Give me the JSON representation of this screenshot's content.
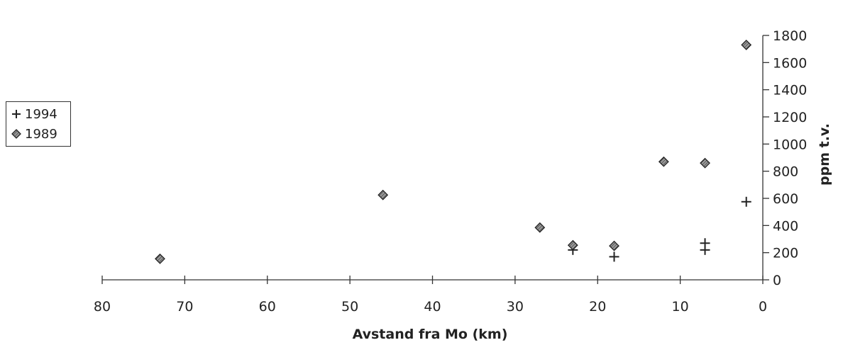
{
  "chart_data": {
    "type": "scatter",
    "xlabel": "Avstand fra Mo (km)",
    "ylabel": "ppm t.v.",
    "xlim": [
      80,
      0
    ],
    "ylim": [
      0,
      1800
    ],
    "x_reversed": true,
    "x_ticks": [
      80,
      70,
      60,
      50,
      40,
      30,
      20,
      10,
      0
    ],
    "y_ticks": [
      0,
      200,
      400,
      600,
      800,
      1000,
      1200,
      1400,
      1600,
      1800
    ],
    "y_axis_side": "right",
    "grid": false,
    "legend_position": "left",
    "series": [
      {
        "name": "1994",
        "marker": "plus",
        "color": "#222222",
        "points": [
          [
            23,
            220
          ],
          [
            18,
            170
          ],
          [
            7,
            220
          ],
          [
            7,
            270
          ],
          [
            2,
            575
          ]
        ]
      },
      {
        "name": "1989",
        "marker": "diamond",
        "color": "#555555",
        "points": [
          [
            73,
            155
          ],
          [
            46,
            625
          ],
          [
            27,
            385
          ],
          [
            23,
            255
          ],
          [
            18,
            250
          ],
          [
            12,
            870
          ],
          [
            7,
            860
          ],
          [
            2,
            1730
          ]
        ]
      }
    ]
  }
}
